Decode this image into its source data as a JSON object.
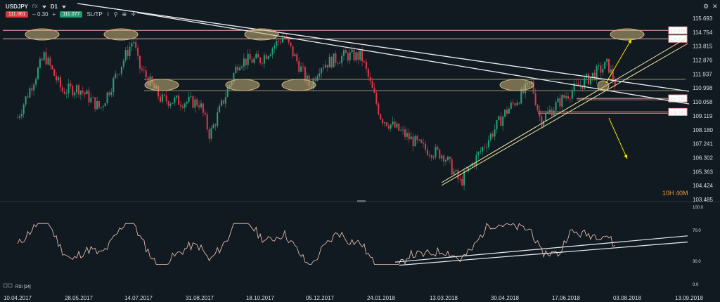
{
  "toolbar": {
    "symbol": "USDJPY",
    "market": "FX",
    "timeframe": "D1",
    "sell_price": "111.061",
    "spread": "– 0.30",
    "plus": "+",
    "buy_price": "111.077",
    "sltp": "SL/TP"
  },
  "top_controls": {
    "settings_icon": "gear-icon",
    "close_icon": "close-icon"
  },
  "countdown": {
    "text": "10H 40M",
    "color": "#e59a3a"
  },
  "colors": {
    "bull": "#1fa67a",
    "bear": "#e0364a",
    "background": "#121a21",
    "trendline": "#e8ecef",
    "level_line": "#f4a7a7",
    "channel": "#f0e6a0",
    "ellipse": "#c9b47a",
    "arrow": "#f2e600",
    "rsi_line": "#f3c9b9"
  },
  "chart_data": [
    {
      "type": "candlestick",
      "title": "USDJPY D1",
      "y_ticks": [
        "115.693",
        "114.754",
        "113.815",
        "112.876",
        "111.937",
        "110.998",
        "110.058",
        "109.119",
        "108.180",
        "107.241",
        "106.302",
        "105.363",
        "104.424",
        "103.485"
      ],
      "ylim": [
        103.485,
        115.693
      ],
      "x_ticks": [
        "10.04.2017",
        "28.05.2017",
        "14.07.2017",
        "31.08.2017",
        "18.10.2017",
        "05.12.2017",
        "24.01.2018",
        "13.03.2018",
        "30.04.2018",
        "17.06.2018",
        "03.08.2018",
        "13.09.2018"
      ],
      "price_labels": [
        {
          "text": "114.878",
          "value": 114.878,
          "color": "#f4a7a7"
        },
        {
          "text": "114.311",
          "value": 114.311,
          "color": "#f4a7a7"
        },
        {
          "text": "110.295",
          "value": 110.295,
          "color": "#f4a7a7"
        },
        {
          "text": "109.381",
          "value": 109.381,
          "color": "#f4a7a7"
        }
      ],
      "approx_close_path": [
        [
          "10.04.2017",
          109.0
        ],
        [
          "01.05.2017",
          113.2
        ],
        [
          "15.05.2017",
          110.8
        ],
        [
          "28.05.2017",
          111.0
        ],
        [
          "14.06.2017",
          109.6
        ],
        [
          "10.07.2017",
          114.3
        ],
        [
          "14.07.2017",
          112.5
        ],
        [
          "01.08.2017",
          110.2
        ],
        [
          "31.08.2017",
          110.0
        ],
        [
          "08.09.2017",
          107.8
        ],
        [
          "01.10.2017",
          112.8
        ],
        [
          "18.10.2017",
          112.9
        ],
        [
          "06.11.2017",
          114.5
        ],
        [
          "27.11.2017",
          111.1
        ],
        [
          "05.12.2017",
          112.5
        ],
        [
          "26.12.2017",
          113.2
        ],
        [
          "08.01.2018",
          113.1
        ],
        [
          "24.01.2018",
          109.0
        ],
        [
          "26.02.2018",
          106.9
        ],
        [
          "13.03.2018",
          106.5
        ],
        [
          "26.03.2018",
          104.6
        ],
        [
          "30.04.2018",
          109.3
        ],
        [
          "21.05.2018",
          111.3
        ],
        [
          "28.05.2018",
          108.8
        ],
        [
          "17.06.2018",
          110.5
        ],
        [
          "19.07.2018",
          112.6
        ],
        [
          "26.07.2018",
          111.0
        ]
      ],
      "rsi": {
        "label": "RSI [14]",
        "y_ticks": [
          "100.0",
          "70.0",
          "30.0",
          "0.0"
        ],
        "ylim": [
          0,
          100
        ]
      }
    }
  ]
}
